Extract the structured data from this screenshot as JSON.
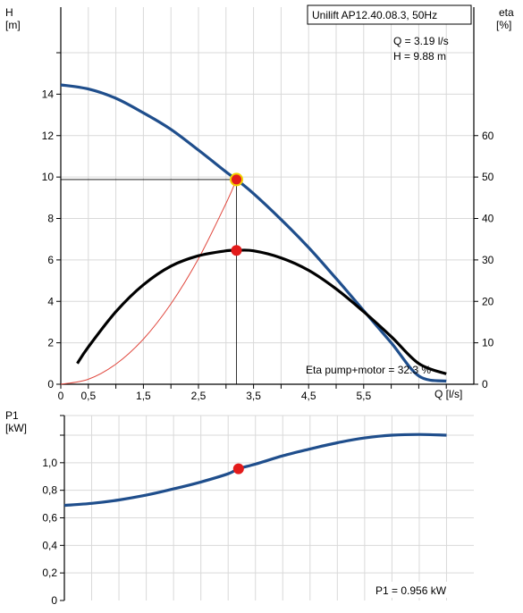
{
  "colors": {
    "head_curve": "#1f4e8c",
    "eta_curve": "#000000",
    "power_curve": "#1f4e8c",
    "system_curve": "#e0463c",
    "duty_point": "#e31b1b",
    "duty_point_ring": "#f2d000",
    "grid": "#d9d9d9"
  },
  "chart_data": [
    {
      "type": "line",
      "info_box": "Unilift AP12.40.08.3, 50Hz",
      "duty_q": "Q = 3.19 l/s",
      "duty_h": "H = 9.88 m",
      "efficiency_label": "Eta pump+motor = 32.3 %",
      "xlabel": "Q [l/s]",
      "ylabel_left": [
        "H",
        "[m]"
      ],
      "ylabel_right": [
        "eta",
        "[%]"
      ],
      "xlim": [
        0,
        7.5
      ],
      "ylim_left": [
        0,
        18.2
      ],
      "ylim_right": [
        0,
        91
      ],
      "x_ticks": [
        0,
        0.5,
        1,
        1.5,
        2,
        2.5,
        3,
        3.5,
        4,
        4.5,
        5,
        5.5,
        6,
        6.5,
        7
      ],
      "x_tick_labels": [
        "0",
        "0,5",
        "",
        "1,5",
        "",
        "2,5",
        "",
        "3,5",
        "",
        "4,5",
        "",
        "5,5",
        "",
        "",
        ""
      ],
      "y_ticks_left": [
        0,
        2,
        4,
        6,
        8,
        10,
        12,
        14
      ],
      "y_ticks_right": [
        0,
        10,
        20,
        30,
        40,
        50,
        60
      ],
      "grid": true,
      "series": [
        {
          "axis": "left",
          "x": [
            0,
            0.5,
            1,
            1.5,
            2,
            2.5,
            3,
            3.19,
            3.5,
            4,
            4.5,
            5,
            5.5,
            6,
            6.5,
            7.0
          ],
          "values": [
            14.45,
            14.25,
            13.8,
            13.1,
            12.3,
            11.3,
            10.25,
            9.88,
            9.2,
            7.95,
            6.6,
            5.1,
            3.55,
            2.0,
            0.4,
            0.15
          ]
        },
        {
          "axis": "right",
          "x": [
            0.3,
            0.5,
            1,
            1.5,
            2,
            2.5,
            3,
            3.19,
            3.5,
            4,
            4.5,
            5,
            5.5,
            6,
            6.5,
            7.0
          ],
          "values": [
            5,
            9,
            17.5,
            24,
            28.5,
            31,
            32.2,
            32.3,
            32.2,
            30.5,
            27.5,
            23,
            17.5,
            11.5,
            5,
            2.5
          ]
        },
        {
          "axis": "left",
          "x": [
            0,
            0.5,
            1,
            1.5,
            2,
            2.5,
            3,
            3.19
          ],
          "values": [
            0,
            0.24,
            0.97,
            2.18,
            3.88,
            6.06,
            8.73,
            9.88
          ]
        }
      ],
      "duty_point": {
        "x": 3.19,
        "h": 9.88,
        "eta": 32.3
      }
    },
    {
      "type": "line",
      "ylabel": [
        "P1",
        "[kW]"
      ],
      "value_label": "P1 = 0.956 kW",
      "xlim": [
        0,
        7.5
      ],
      "ylim": [
        0,
        1.2
      ],
      "y_ticks": [
        0,
        0.2,
        0.4,
        0.6,
        0.8,
        1.0,
        1.2
      ],
      "y_tick_labels": [
        "0",
        "0,2",
        "0,4",
        "0,6",
        "0,8",
        "1,0",
        ""
      ],
      "grid": true,
      "series": [
        {
          "x": [
            0,
            0.5,
            1,
            1.5,
            2,
            2.5,
            3,
            3.19,
            3.5,
            4,
            4.5,
            5,
            5.5,
            6,
            6.5,
            7.0
          ],
          "values": [
            0.69,
            0.705,
            0.73,
            0.765,
            0.81,
            0.86,
            0.92,
            0.956,
            0.99,
            1.05,
            1.1,
            1.145,
            1.18,
            1.2,
            1.205,
            1.2
          ]
        }
      ],
      "duty_point": {
        "x": 3.19,
        "p1": 0.956
      }
    }
  ]
}
